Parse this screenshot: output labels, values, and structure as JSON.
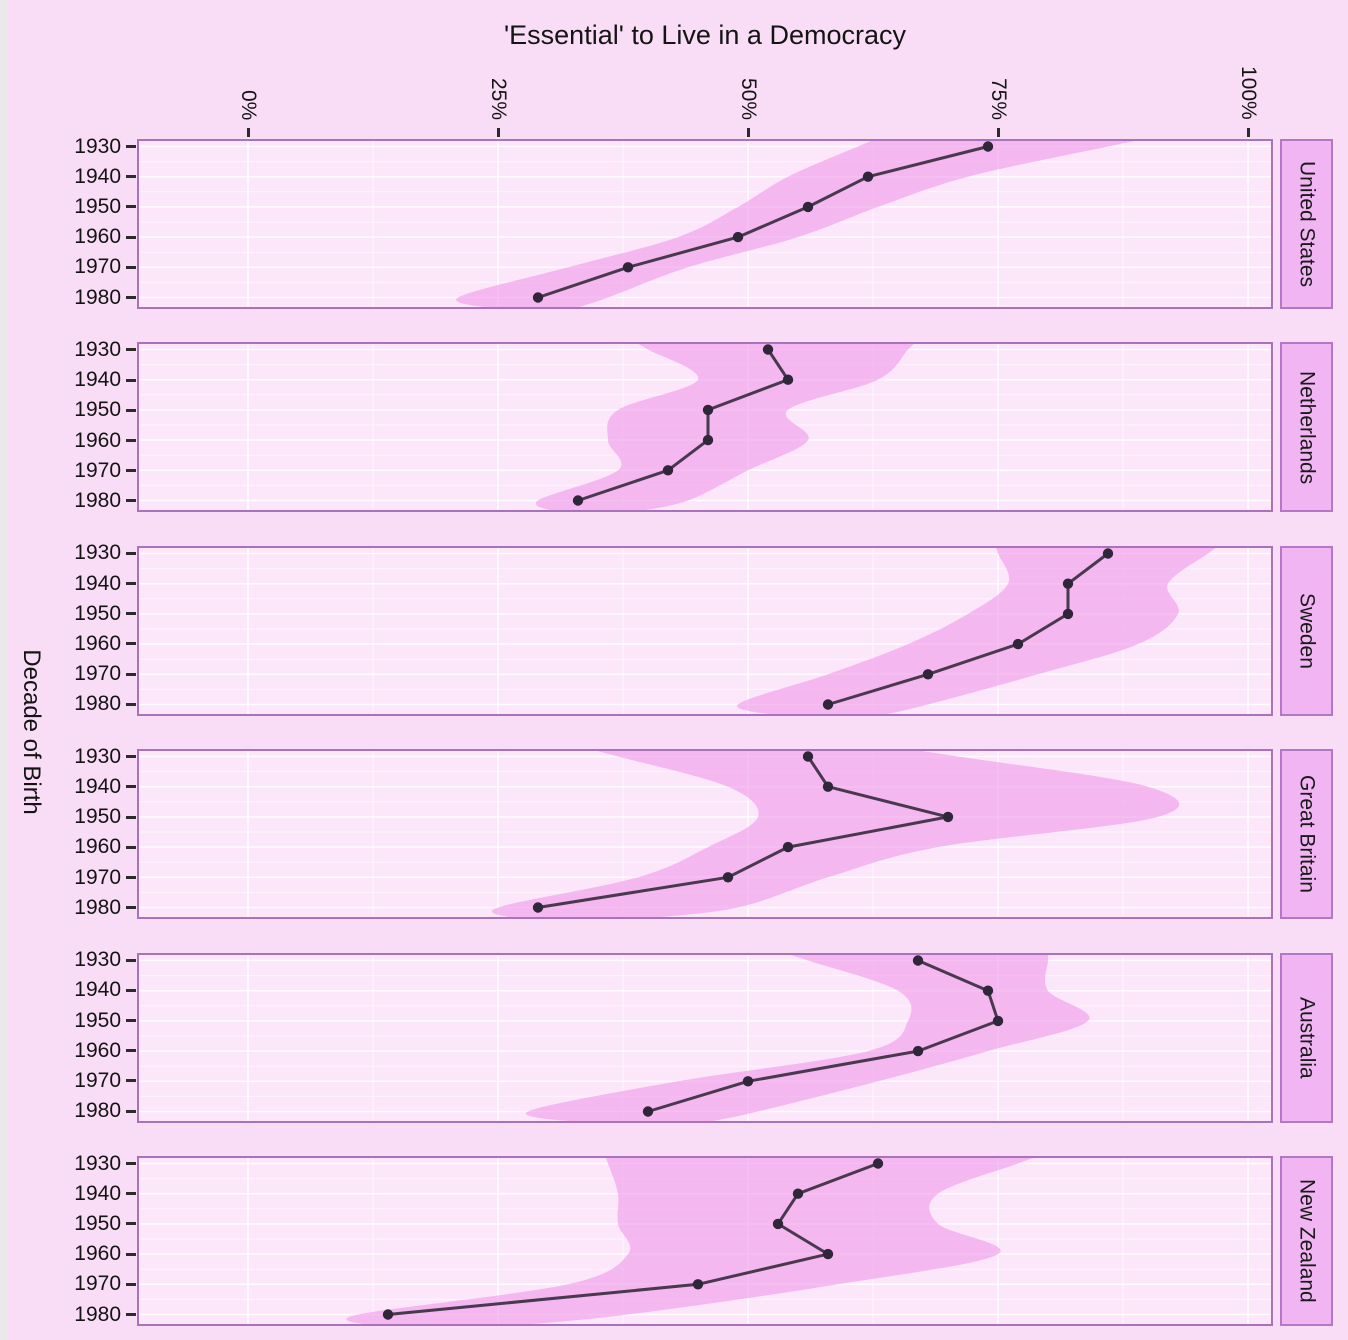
{
  "chart_data": {
    "type": "line",
    "title": "'Essential' to Live in a Democracy",
    "ylabel": "Decade of Birth",
    "legend": "none",
    "x_axis": {
      "position": "top",
      "labels": [
        "0%",
        "25%",
        "50%",
        "75%",
        "100%"
      ],
      "values": [
        0,
        25,
        50,
        75,
        100
      ],
      "range_shown": [
        -11,
        102.5
      ],
      "tick_label_rotation_deg": 90
    },
    "grid": {
      "major_x": [
        0,
        25,
        50,
        75,
        100
      ],
      "minor_x": [
        12.5,
        37.5,
        62.5,
        87.5
      ],
      "major_y": "every decade row",
      "minor_y": "between decade rows"
    },
    "categories": [
      "1930",
      "1940",
      "1950",
      "1960",
      "1970",
      "1980"
    ],
    "band_note": "shaded ribbon = confidence band around each series, values in percent (approx, read from figure)",
    "panels": [
      {
        "country": "United States",
        "values": [
          74,
          62,
          56,
          49,
          38,
          29
        ],
        "band_low": [
          61,
          54,
          49,
          43,
          32,
          21
        ],
        "band_high": [
          86,
          72,
          63,
          55,
          44,
          36
        ]
      },
      {
        "country": "Netherlands",
        "values": [
          52,
          54,
          46,
          46,
          42,
          33
        ],
        "band_low": [
          40,
          45,
          37,
          36,
          37,
          29
        ],
        "band_high": [
          66,
          63,
          54,
          56,
          50,
          44
        ]
      },
      {
        "country": "Sweden",
        "values": [
          86,
          82,
          82,
          77,
          68,
          58
        ],
        "band_low": [
          75,
          76,
          72,
          66,
          58,
          49
        ],
        "band_high": [
          96,
          92,
          93,
          89,
          79,
          68
        ]
      },
      {
        "country": "Great Britain",
        "values": [
          56,
          58,
          70,
          54,
          48,
          29
        ],
        "band_low": [
          37,
          48,
          51,
          46,
          39,
          25
        ],
        "band_high": [
          71,
          90,
          91,
          69,
          58,
          49
        ]
      },
      {
        "country": "Australia",
        "values": [
          67,
          74,
          75,
          67,
          50,
          40
        ],
        "band_low": [
          56,
          65,
          66,
          62,
          43,
          28
        ],
        "band_high": [
          80,
          80,
          84,
          74,
          63,
          51
        ]
      },
      {
        "country": "New Zealand",
        "values": [
          63,
          55,
          53,
          58,
          45,
          14
        ],
        "band_low": [
          36,
          37,
          37,
          38,
          32,
          11
        ],
        "band_high": [
          77,
          69,
          69,
          75,
          59,
          38
        ]
      }
    ],
    "colors": {
      "page_bg": "#f9ddf6",
      "panel_bg": "#fce6fa",
      "band": "#ef97e7",
      "line": "#48394f",
      "point": "#2f2639",
      "border": "#a873ba",
      "strip_bg": "#f2b5f3",
      "grid_major": "rgba(255,255,255,0.85)",
      "grid_minor": "rgba(255,255,255,0.5)",
      "text": "#141414"
    }
  }
}
